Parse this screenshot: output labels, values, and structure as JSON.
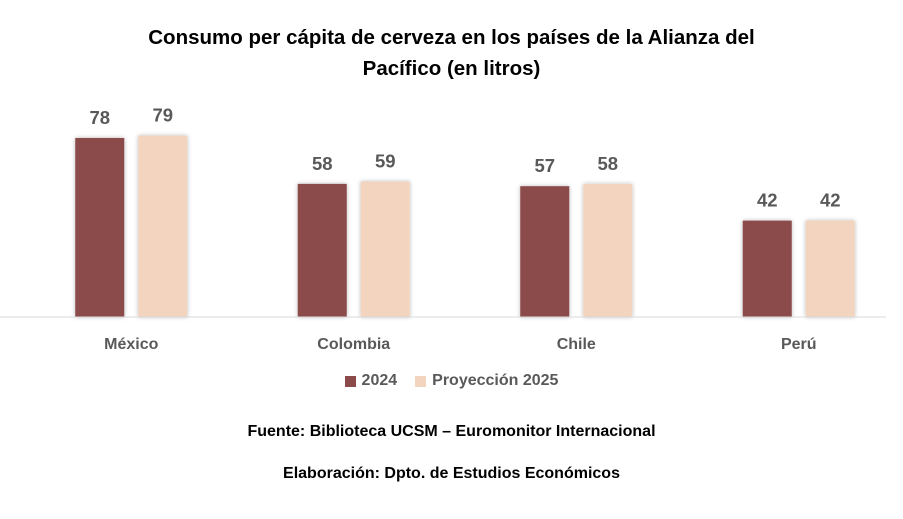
{
  "title": {
    "line1": "Consumo per cápita de cerveza en los países de la Alianza del",
    "line2": "Pacífico (en litros)"
  },
  "colors": {
    "series_2024": "#8B4B4B",
    "series_2025": "#F2D4BF",
    "axis_line": "#D9D9D9",
    "value_label": "#595959"
  },
  "chart_data": {
    "type": "bar",
    "title": "Consumo per cápita de cerveza en los países de la Alianza del Pacífico (en litros)",
    "categories": [
      "México",
      "Colombia",
      "Chile",
      "Perú"
    ],
    "series": [
      {
        "name": "2024",
        "values": [
          78,
          58,
          57,
          42
        ]
      },
      {
        "name": "Proyección 2025",
        "values": [
          79,
          59,
          58,
          42
        ]
      }
    ],
    "ylim": [
      0,
      80
    ],
    "grid": false,
    "legend_position": "bottom"
  },
  "footer": {
    "source": "Fuente: Biblioteca UCSM – Euromonitor Internacional",
    "credit": "Elaboración: Dpto. de Estudios Económicos"
  }
}
